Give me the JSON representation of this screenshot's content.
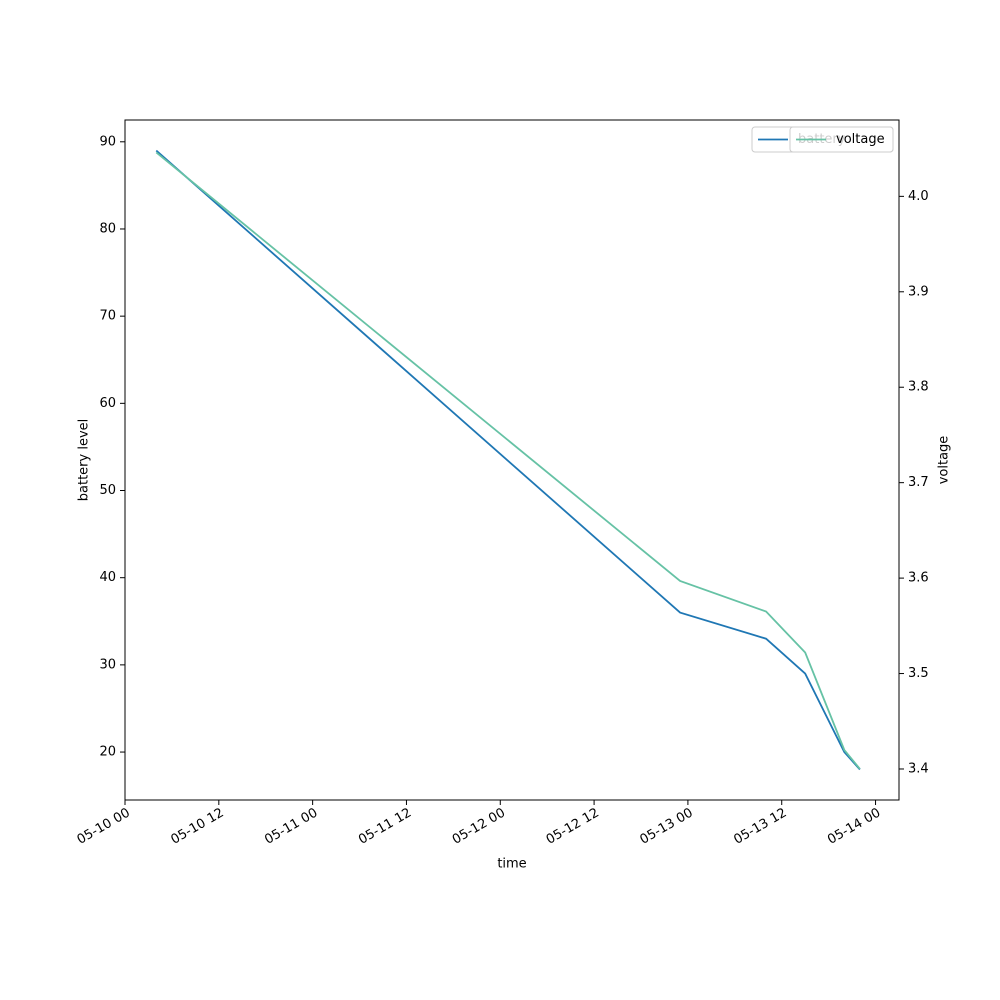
{
  "chart_data": {
    "type": "line",
    "x_label": "time",
    "y_label": "battery level",
    "y2_label": "voltage",
    "x": [
      "05-10 04",
      "05-12 23",
      "05-13 10",
      "05-13 15",
      "05-13 20",
      "05-13 22"
    ],
    "series": [
      {
        "name": "battery",
        "color": "#1f77b4",
        "values": [
          89,
          36,
          33,
          29,
          20,
          18
        ]
      },
      {
        "name": "voltage",
        "color": "#66c2a5",
        "axis": "y2",
        "values": [
          4.046,
          3.597,
          3.565,
          3.522,
          3.42,
          3.4
        ]
      }
    ],
    "xlim": [
      "05-10 00",
      "05-14 03"
    ],
    "xticks": [
      "05-10 00",
      "05-10 12",
      "05-11 00",
      "05-11 12",
      "05-12 00",
      "05-12 12",
      "05-13 00",
      "05-13 12",
      "05-14 00"
    ],
    "ylim": [
      14.5,
      92.5
    ],
    "yticks": [
      20,
      30,
      40,
      50,
      60,
      70,
      80,
      90
    ],
    "y2lim": [
      3.3675,
      4.08
    ],
    "y2ticks": [
      3.4,
      3.5,
      3.6,
      3.7,
      3.8,
      3.9,
      {
        "value": 4.0,
        "label": "4.0"
      }
    ],
    "grid": false,
    "legend": "upper right"
  }
}
